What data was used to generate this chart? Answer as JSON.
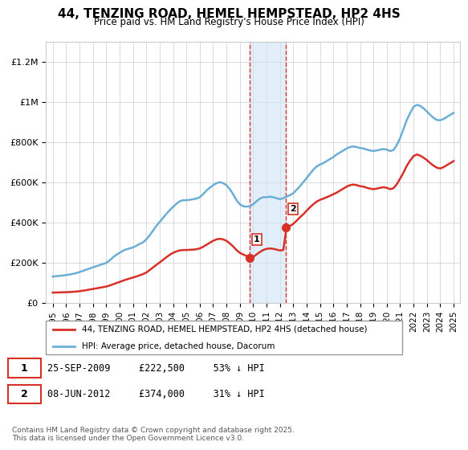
{
  "title": "44, TENZING ROAD, HEMEL HEMPSTEAD, HP2 4HS",
  "subtitle": "Price paid vs. HM Land Registry's House Price Index (HPI)",
  "hpi_color": "#6baed6",
  "price_color": "#d73027",
  "sale1_date_num": 2009.73,
  "sale1_price": 222500,
  "sale1_label": "1",
  "sale1_text": "25-SEP-2009     £222,500     53% ↓ HPI",
  "sale2_date_num": 2012.44,
  "sale2_price": 374000,
  "sale2_label": "2",
  "sale2_text": "08-JUN-2012     £374,000     31% ↓ HPI",
  "legend_property": "44, TENZING ROAD, HEMEL HEMPSTEAD, HP2 4HS (detached house)",
  "legend_hpi": "HPI: Average price, detached house, Dacorum",
  "footnote": "Contains HM Land Registry data © Crown copyright and database right 2025.\nThis data is licensed under the Open Government Licence v3.0.",
  "ylim": [
    0,
    1300000
  ],
  "xlim_start": 1994.5,
  "xlim_end": 2025.5,
  "yticks": [
    0,
    200000,
    400000,
    600000,
    800000,
    1000000,
    1200000
  ],
  "ytick_labels": [
    "£0",
    "£200K",
    "£400K",
    "£600K",
    "£800K",
    "£1M",
    "£1.2M"
  ],
  "xticks": [
    1995,
    1996,
    1997,
    1998,
    1999,
    2000,
    2001,
    2002,
    2003,
    2004,
    2005,
    2006,
    2007,
    2008,
    2009,
    2010,
    2011,
    2012,
    2013,
    2014,
    2015,
    2016,
    2017,
    2018,
    2019,
    2020,
    2021,
    2022,
    2023,
    2024,
    2025
  ],
  "shade_x1": 2009.73,
  "shade_x2": 2012.44,
  "hpi_data": {
    "years": [
      1995.0,
      1995.25,
      1995.5,
      1995.75,
      1996.0,
      1996.25,
      1996.5,
      1996.75,
      1997.0,
      1997.25,
      1997.5,
      1997.75,
      1998.0,
      1998.25,
      1998.5,
      1998.75,
      1999.0,
      1999.25,
      1999.5,
      1999.75,
      2000.0,
      2000.25,
      2000.5,
      2000.75,
      2001.0,
      2001.25,
      2001.5,
      2001.75,
      2002.0,
      2002.25,
      2002.5,
      2002.75,
      2003.0,
      2003.25,
      2003.5,
      2003.75,
      2004.0,
      2004.25,
      2004.5,
      2004.75,
      2005.0,
      2005.25,
      2005.5,
      2005.75,
      2006.0,
      2006.25,
      2006.5,
      2006.75,
      2007.0,
      2007.25,
      2007.5,
      2007.75,
      2008.0,
      2008.25,
      2008.5,
      2008.75,
      2009.0,
      2009.25,
      2009.5,
      2009.75,
      2010.0,
      2010.25,
      2010.5,
      2010.75,
      2011.0,
      2011.25,
      2011.5,
      2011.75,
      2012.0,
      2012.25,
      2012.5,
      2012.75,
      2013.0,
      2013.25,
      2013.5,
      2013.75,
      2014.0,
      2014.25,
      2014.5,
      2014.75,
      2015.0,
      2015.25,
      2015.5,
      2015.75,
      2016.0,
      2016.25,
      2016.5,
      2016.75,
      2017.0,
      2017.25,
      2017.5,
      2017.75,
      2018.0,
      2018.25,
      2018.5,
      2018.75,
      2019.0,
      2019.25,
      2019.5,
      2019.75,
      2020.0,
      2020.25,
      2020.5,
      2020.75,
      2021.0,
      2021.25,
      2021.5,
      2021.75,
      2022.0,
      2022.25,
      2022.5,
      2022.75,
      2023.0,
      2023.25,
      2023.5,
      2023.75,
      2024.0,
      2024.25,
      2024.5,
      2024.75,
      2025.0
    ],
    "values": [
      130000,
      132000,
      133000,
      135000,
      137000,
      140000,
      143000,
      147000,
      152000,
      158000,
      164000,
      170000,
      176000,
      181000,
      187000,
      192000,
      198000,
      210000,
      225000,
      238000,
      248000,
      258000,
      265000,
      270000,
      275000,
      283000,
      292000,
      300000,
      315000,
      335000,
      358000,
      382000,
      402000,
      422000,
      442000,
      460000,
      477000,
      492000,
      505000,
      510000,
      510000,
      512000,
      515000,
      518000,
      525000,
      540000,
      558000,
      572000,
      585000,
      595000,
      600000,
      595000,
      585000,
      565000,
      540000,
      510000,
      490000,
      480000,
      478000,
      480000,
      490000,
      505000,
      518000,
      525000,
      525000,
      528000,
      525000,
      520000,
      515000,
      520000,
      528000,
      535000,
      545000,
      562000,
      580000,
      600000,
      620000,
      642000,
      662000,
      678000,
      688000,
      695000,
      705000,
      715000,
      725000,
      738000,
      748000,
      758000,
      768000,
      775000,
      778000,
      775000,
      770000,
      768000,
      762000,
      758000,
      755000,
      758000,
      762000,
      765000,
      762000,
      755000,
      760000,
      785000,
      820000,
      865000,
      910000,
      945000,
      975000,
      985000,
      980000,
      968000,
      952000,
      935000,
      920000,
      910000,
      908000,
      915000,
      925000,
      935000,
      945000
    ]
  },
  "price_data": {
    "years": [
      1995.0,
      1995.25,
      1995.5,
      1995.75,
      1996.0,
      1996.25,
      1996.5,
      1996.75,
      1997.0,
      1997.25,
      1997.5,
      1997.75,
      1998.0,
      1998.25,
      1998.5,
      1998.75,
      1999.0,
      1999.25,
      1999.5,
      1999.75,
      2000.0,
      2000.25,
      2000.5,
      2000.75,
      2001.0,
      2001.25,
      2001.5,
      2001.75,
      2002.0,
      2002.25,
      2002.5,
      2002.75,
      2003.0,
      2003.25,
      2003.5,
      2003.75,
      2004.0,
      2004.25,
      2004.5,
      2004.75,
      2005.0,
      2005.25,
      2005.5,
      2005.75,
      2006.0,
      2006.25,
      2006.5,
      2006.75,
      2007.0,
      2007.25,
      2007.5,
      2007.75,
      2008.0,
      2008.25,
      2008.5,
      2008.75,
      2009.0,
      2009.25,
      2009.5,
      2009.75,
      2010.0,
      2010.25,
      2010.5,
      2010.75,
      2011.0,
      2011.25,
      2011.5,
      2011.75,
      2012.0,
      2012.25,
      2012.5,
      2012.75,
      2013.0,
      2013.25,
      2013.5,
      2013.75,
      2014.0,
      2014.25,
      2014.5,
      2014.75,
      2015.0,
      2015.25,
      2015.5,
      2015.75,
      2016.0,
      2016.25,
      2016.5,
      2016.75,
      2017.0,
      2017.25,
      2017.5,
      2017.75,
      2018.0,
      2018.25,
      2018.5,
      2018.75,
      2019.0,
      2019.25,
      2019.5,
      2019.75,
      2020.0,
      2020.25,
      2020.5,
      2020.75,
      2021.0,
      2021.25,
      2021.5,
      2021.75,
      2022.0,
      2022.25,
      2022.5,
      2022.75,
      2023.0,
      2023.25,
      2023.5,
      2023.75,
      2024.0,
      2024.25,
      2024.5,
      2024.75,
      2025.0
    ],
    "values": [
      50000,
      50500,
      51000,
      51500,
      52000,
      52800,
      53800,
      55000,
      57000,
      59500,
      62000,
      65000,
      68000,
      71000,
      74000,
      77000,
      80000,
      85000,
      91000,
      97000,
      103000,
      109000,
      115000,
      120000,
      125000,
      130000,
      136000,
      142000,
      150000,
      162000,
      175000,
      188000,
      200000,
      213000,
      226000,
      238000,
      248000,
      255000,
      260000,
      262000,
      262000,
      263000,
      264000,
      266000,
      270000,
      278000,
      288000,
      298000,
      308000,
      315000,
      318000,
      315000,
      308000,
      295000,
      280000,
      262000,
      248000,
      240000,
      232000,
      222500,
      228000,
      240000,
      252000,
      262000,
      268000,
      270000,
      268000,
      264000,
      260000,
      262000,
      374000,
      382000,
      392000,
      408000,
      425000,
      440000,
      458000,
      475000,
      490000,
      503000,
      512000,
      518000,
      525000,
      532000,
      540000,
      548000,
      558000,
      568000,
      578000,
      585000,
      588000,
      585000,
      580000,
      578000,
      572000,
      568000,
      565000,
      568000,
      572000,
      575000,
      572000,
      565000,
      570000,
      590000,
      618000,
      648000,
      682000,
      708000,
      730000,
      738000,
      732000,
      722000,
      710000,
      695000,
      682000,
      672000,
      668000,
      675000,
      685000,
      695000,
      705000
    ]
  }
}
